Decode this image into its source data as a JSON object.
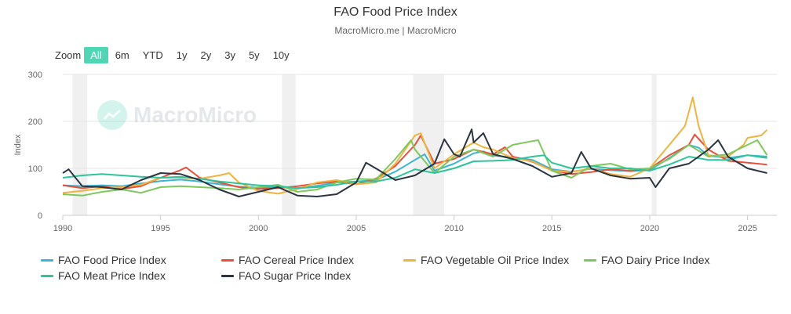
{
  "header": {
    "title": "FAO Food Price Index",
    "subtitle": "MacroMicro.me | MacroMicro"
  },
  "zoom": {
    "label": "Zoom",
    "buttons": [
      "All",
      "6m",
      "YTD",
      "1y",
      "2y",
      "3y",
      "5y",
      "10y"
    ],
    "active": "All"
  },
  "watermark": {
    "text": "MacroMicro"
  },
  "chart_data": {
    "type": "line",
    "title": "FAO Food Price Index",
    "subtitle": "MacroMicro.me | MacroMicro",
    "xlabel": "",
    "ylabel": "Index",
    "xlim": [
      1990,
      2026.5
    ],
    "ylim": [
      0,
      300
    ],
    "x_ticks": [
      1990,
      1995,
      2000,
      2005,
      2010,
      2015,
      2020,
      2025
    ],
    "y_ticks": [
      0,
      100,
      200,
      300
    ],
    "grid": true,
    "legend_position": "bottom",
    "recession_bands": [
      [
        1990.5,
        1991.25
      ],
      [
        2001.2,
        2001.9
      ],
      [
        2007.9,
        2009.5
      ],
      [
        2020.1,
        2020.35
      ]
    ],
    "series": [
      {
        "name": "FAO Food Price Index",
        "color": "#3bb5d6",
        "x": [
          1990,
          1991,
          1992,
          1993,
          1994,
          1995,
          1996,
          1997,
          1998,
          1999,
          2000,
          2001,
          2002,
          2003,
          2004,
          2005,
          2006,
          2007,
          2008,
          2008.5,
          2009,
          2010,
          2011,
          2011.5,
          2012,
          2013,
          2014,
          2015,
          2016,
          2017,
          2018,
          2019,
          2020,
          2021,
          2022,
          2022.5,
          2023,
          2024,
          2025,
          2026
        ],
        "y": [
          64,
          62,
          64,
          62,
          68,
          73,
          76,
          72,
          66,
          61,
          59,
          60,
          58,
          63,
          70,
          72,
          75,
          93,
          118,
          130,
          95,
          110,
          132,
          136,
          127,
          124,
          118,
          98,
          93,
          99,
          96,
          94,
          96,
          122,
          150,
          144,
          127,
          122,
          128,
          125
        ]
      },
      {
        "name": "FAO Cereal Price Index",
        "color": "#e8503a",
        "x": [
          1990,
          1991,
          1992,
          1993,
          1994,
          1995,
          1996,
          1996.3,
          1997,
          1998,
          1999,
          2000,
          2001,
          2002,
          2003,
          2004,
          2005,
          2006,
          2007,
          2008,
          2008.3,
          2009,
          2010,
          2011,
          2012,
          2012.6,
          2013,
          2014,
          2015,
          2016,
          2017,
          2018,
          2019,
          2020,
          2021,
          2022,
          2022.3,
          2023,
          2024,
          2025,
          2026
        ],
        "y": [
          64,
          58,
          62,
          56,
          62,
          80,
          96,
          102,
          80,
          70,
          60,
          56,
          58,
          62,
          68,
          72,
          66,
          78,
          105,
          150,
          170,
          110,
          120,
          140,
          130,
          145,
          125,
          114,
          96,
          88,
          92,
          98,
          95,
          99,
          128,
          150,
          172,
          140,
          116,
          112,
          108
        ]
      },
      {
        "name": "FAO Vegetable Oil Price Index",
        "color": "#f0b43c",
        "x": [
          1990,
          1991,
          1992,
          1993,
          1994,
          1995,
          1996,
          1997,
          1998,
          1998.5,
          1999,
          2000,
          2001,
          2002,
          2003,
          2004,
          2005,
          2006,
          2007,
          2008,
          2008.3,
          2009,
          2010,
          2011,
          2011.5,
          2012,
          2013,
          2014,
          2015,
          2016,
          2017,
          2018,
          2019,
          2020,
          2021,
          2021.8,
          2022,
          2022.2,
          2022.5,
          2023,
          2024,
          2024.8,
          2025,
          2025.7,
          2026
        ],
        "y": [
          48,
          52,
          58,
          60,
          65,
          80,
          80,
          78,
          85,
          90,
          70,
          52,
          46,
          56,
          70,
          75,
          66,
          70,
          110,
          170,
          175,
          100,
          130,
          155,
          145,
          140,
          122,
          115,
          95,
          92,
          100,
          88,
          82,
          100,
          150,
          190,
          220,
          251,
          190,
          128,
          125,
          150,
          165,
          170,
          182
        ]
      },
      {
        "name": "FAO Dairy Price Index",
        "color": "#7cc85a",
        "x": [
          1990,
          1991,
          1992,
          1993,
          1994,
          1995,
          1996,
          1997,
          1998,
          1999,
          2000,
          2001,
          2002,
          2003,
          2004,
          2005,
          2006,
          2007,
          2007.8,
          2008,
          2009,
          2010,
          2011,
          2012,
          2013,
          2014,
          2014.3,
          2015,
          2016,
          2017,
          2018,
          2019,
          2020,
          2021,
          2022,
          2023,
          2024,
          2025,
          2025.5,
          2026
        ],
        "y": [
          45,
          42,
          50,
          55,
          48,
          60,
          62,
          60,
          58,
          55,
          60,
          65,
          50,
          55,
          70,
          78,
          76,
          120,
          160,
          140,
          90,
          125,
          140,
          125,
          150,
          158,
          160,
          95,
          80,
          105,
          110,
          98,
          100,
          120,
          150,
          125,
          130,
          150,
          160,
          128
        ]
      },
      {
        "name": "FAO Meat Price Index",
        "color": "#2ec49a",
        "x": [
          1990,
          1991,
          1992,
          1993,
          1994,
          1995,
          1996,
          1997,
          1998,
          1999,
          2000,
          2001,
          2002,
          2003,
          2004,
          2005,
          2006,
          2007,
          2008,
          2009,
          2010,
          2011,
          2012,
          2013,
          2014,
          2014.6,
          2015,
          2016,
          2017,
          2018,
          2019,
          2020,
          2021,
          2022,
          2023,
          2024,
          2025,
          2026
        ],
        "y": [
          80,
          85,
          88,
          85,
          82,
          80,
          82,
          78,
          72,
          68,
          64,
          62,
          58,
          60,
          65,
          72,
          72,
          80,
          98,
          90,
          100,
          115,
          116,
          118,
          125,
          128,
          112,
          100,
          105,
          100,
          100,
          95,
          108,
          125,
          118,
          118,
          128,
          122
        ]
      },
      {
        "name": "FAO Sugar Price Index",
        "color": "#2b3440",
        "x": [
          1990,
          1990.3,
          1991,
          1992,
          1993,
          1994,
          1995,
          1996,
          1997,
          1998,
          1999,
          2000,
          2001,
          2002,
          2003,
          2004,
          2005,
          2005.5,
          2006,
          2007,
          2008,
          2009,
          2009.5,
          2010,
          2010.3,
          2010.9,
          2011,
          2011.5,
          2012,
          2013,
          2014,
          2015,
          2016,
          2016.5,
          2017,
          2018,
          2019,
          2020,
          2020.3,
          2021,
          2022,
          2023,
          2023.5,
          2024,
          2025,
          2026
        ],
        "y": [
          90,
          98,
          62,
          60,
          55,
          75,
          90,
          88,
          75,
          55,
          40,
          50,
          60,
          42,
          40,
          45,
          70,
          112,
          100,
          75,
          85,
          110,
          162,
          130,
          125,
          183,
          155,
          175,
          130,
          120,
          105,
          82,
          90,
          135,
          100,
          85,
          78,
          80,
          60,
          100,
          110,
          140,
          160,
          125,
          100,
          90
        ]
      }
    ]
  }
}
